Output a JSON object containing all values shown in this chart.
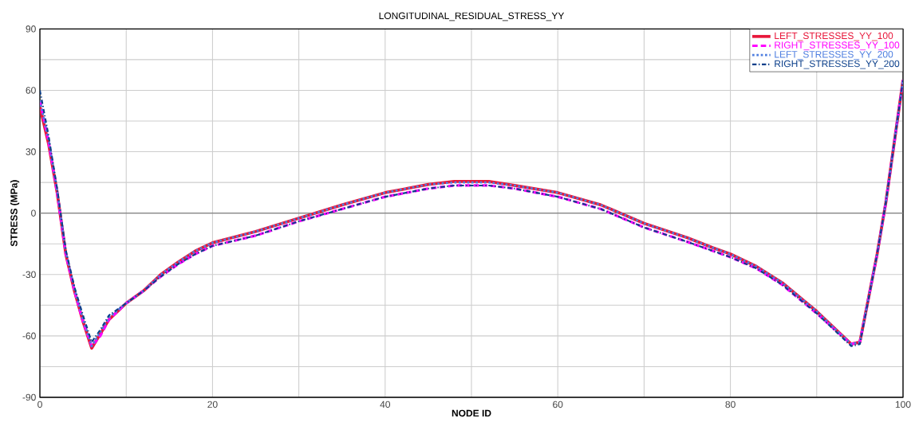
{
  "chart_data": {
    "type": "line",
    "title": "LONGITUDINAL_RESIDUAL_STRESS_YY",
    "xlabel": "NODE ID",
    "ylabel": "STRESS (MPa)",
    "x": [
      0,
      1,
      2,
      3,
      4,
      5,
      6,
      7,
      8,
      10,
      12,
      14,
      16,
      18,
      20,
      25,
      30,
      35,
      40,
      45,
      48,
      50,
      52,
      55,
      60,
      65,
      70,
      75,
      78,
      80,
      83,
      86,
      90,
      94,
      95,
      97,
      98,
      100
    ],
    "series": [
      {
        "name": "LEFT_STRESSES_YY_100",
        "color": "#e8173a",
        "line_style": "solid",
        "values": [
          52,
          34,
          10,
          -20,
          -38,
          -53,
          -66,
          -59,
          -52,
          -44,
          -38,
          -30,
          -24,
          -18.5,
          -14.5,
          -9,
          -2.5,
          4,
          10,
          14,
          15.5,
          15.5,
          15.5,
          13.5,
          10,
          4,
          -5,
          -12,
          -17,
          -20,
          -26,
          -34,
          -48,
          -64,
          -63,
          -20,
          5,
          65
        ]
      },
      {
        "name": "RIGHT_STRESSES_YY_100",
        "color": "#ff00ff",
        "line_style": "dashed",
        "values": [
          55,
          35,
          10,
          -20,
          -38,
          -53,
          -65,
          -60,
          -52,
          -44,
          -38,
          -31,
          -25,
          -20,
          -16,
          -11,
          -4,
          2,
          8,
          12,
          13.5,
          13.5,
          13.5,
          12,
          8,
          2,
          -7,
          -14,
          -18.5,
          -21.5,
          -27,
          -35,
          -49,
          -64,
          -63,
          -20,
          5,
          65
        ]
      },
      {
        "name": "LEFT_STRESSES_YY_200",
        "color": "#4f7fe0",
        "line_style": "dotted",
        "values": [
          55,
          36,
          11,
          -19,
          -37,
          -52,
          -65,
          -58,
          -51,
          -44,
          -38,
          -30,
          -24,
          -18.5,
          -14.5,
          -9,
          -2.5,
          4,
          10,
          14,
          15,
          15,
          15,
          13.5,
          10,
          4,
          -5,
          -12,
          -17,
          -20,
          -26,
          -34,
          -48,
          -64,
          -63,
          -20,
          5,
          65
        ]
      },
      {
        "name": "RIGHT_STRESSES_YY_200",
        "color": "#0b3f8a",
        "line_style": "dashdotted",
        "values": [
          60,
          38,
          12,
          -18,
          -36,
          -50,
          -63,
          -57,
          -50,
          -44,
          -38,
          -31,
          -25,
          -20,
          -16,
          -11,
          -4,
          2,
          8,
          12,
          13.5,
          13.5,
          13.5,
          12,
          8,
          2,
          -7,
          -14,
          -18.5,
          -21.5,
          -27,
          -35,
          -49,
          -65,
          -64,
          -20,
          5,
          65
        ]
      }
    ],
    "xlim": [
      0,
      100
    ],
    "ylim": [
      -90,
      90
    ],
    "xticks": [
      0,
      {
        "value": 10,
        "label": null
      },
      20,
      {
        "value": 30,
        "label": null
      },
      40,
      {
        "value": 50,
        "label": null
      },
      60,
      {
        "value": 70,
        "label": null
      },
      80,
      {
        "value": 90,
        "label": null
      },
      100
    ],
    "yticks": [
      -90,
      {
        "value": -75,
        "label": null
      },
      -60,
      {
        "value": -45,
        "label": null
      },
      -30,
      {
        "value": -15,
        "label": null
      },
      0,
      {
        "value": 15,
        "label": null
      },
      30,
      {
        "value": 45,
        "label": null
      },
      60,
      {
        "value": 75,
        "label": null
      },
      90
    ],
    "ref_lines": [
      {
        "axis": "y",
        "value": 0,
        "color": "#808080"
      }
    ],
    "grid": true,
    "legend": "top right",
    "marker": "none"
  }
}
